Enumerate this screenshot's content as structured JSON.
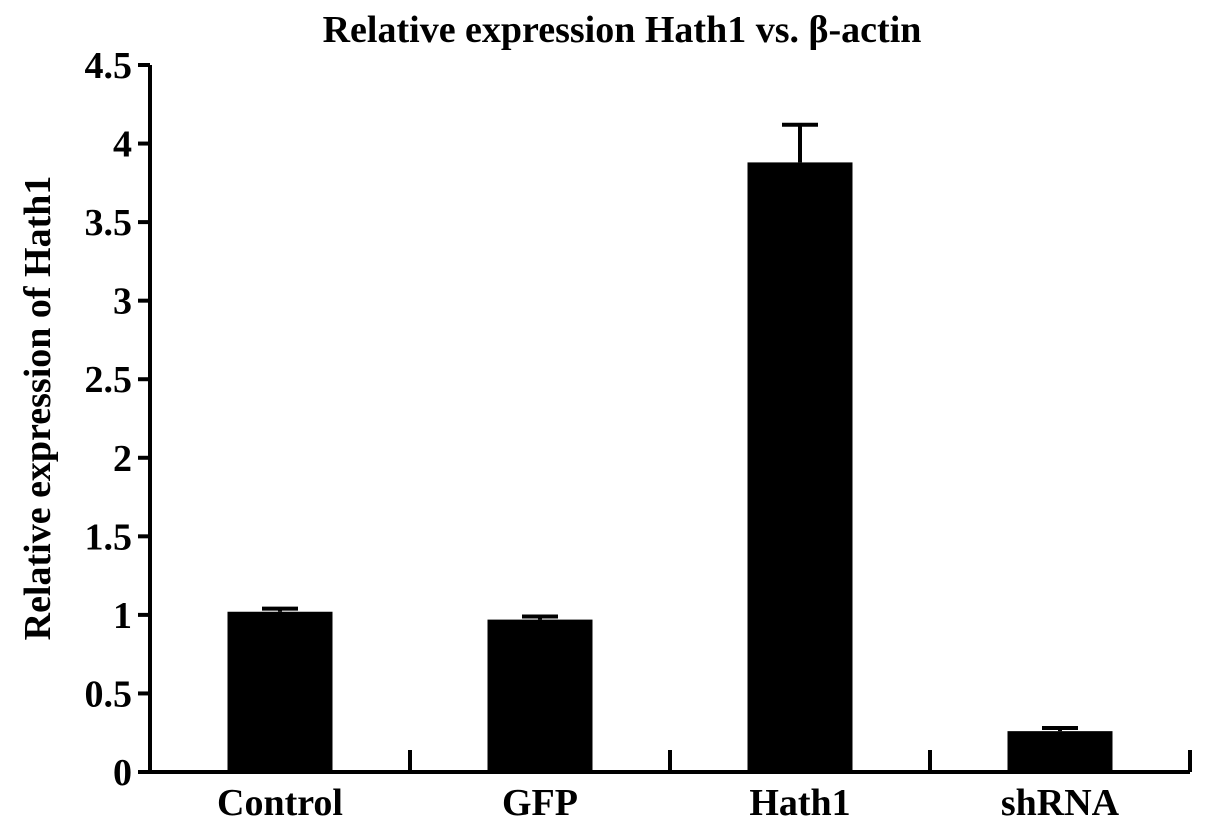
{
  "chart_data": {
    "type": "bar",
    "title": "Relative expression Hath1 vs. β-actin",
    "xlabel": "",
    "ylabel": "Relative expression of Hath1",
    "categories": [
      "Control",
      "GFP",
      "Hath1",
      "shRNA"
    ],
    "values": [
      1.02,
      0.97,
      3.88,
      0.26
    ],
    "error": [
      0.02,
      0.02,
      0.24,
      0.02
    ],
    "ylim": [
      0,
      4.5
    ],
    "yticks": [
      0,
      0.5,
      1,
      1.5,
      2,
      2.5,
      3,
      3.5,
      4,
      4.5
    ],
    "ytick_labels": [
      "0",
      "0.5",
      "1",
      "1.5",
      "2",
      "2.5",
      "3",
      "3.5",
      "4",
      "4.5"
    ],
    "bar_color": "#000000",
    "grid": false,
    "legend": "none"
  }
}
